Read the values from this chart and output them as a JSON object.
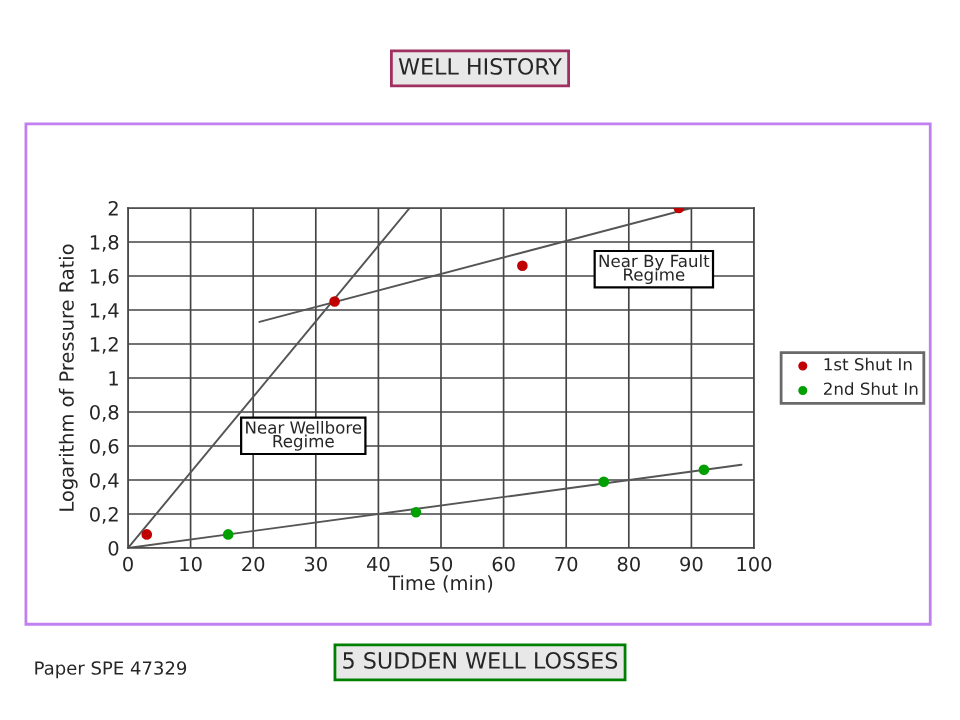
{
  "chart_data": {
    "type": "scatter",
    "title": "WELL HISTORY",
    "xlabel": "Time (min)",
    "ylabel": "Logarithm of Pressure Ratio",
    "annotations": [
      "Near Wellbore\nRegime",
      "Near By Fault\nRegime",
      "5 SUDDEN WELL LOSSES",
      "Paper SPE 47329"
    ],
    "series": [
      {
        "name": "1st Shut In",
        "color": "#c00000",
        "x": [
          3,
          33,
          63,
          88
        ],
        "values": [
          0.08,
          1.45,
          1.66,
          2.0
        ]
      },
      {
        "name": "2nd Shut In",
        "color": "#00a000",
        "x": [
          16,
          46,
          76,
          92
        ],
        "values": [
          0.08,
          0.21,
          0.39,
          0.46
        ]
      },
      {
        "type": "line",
        "marker": "none",
        "color": "#555555",
        "x": [
          0,
          45
        ],
        "values": [
          0,
          2.0
        ]
      },
      {
        "type": "line",
        "marker": "none",
        "color": "#555555",
        "x": [
          21,
          90
        ],
        "values": [
          1.33,
          2.0
        ]
      },
      {
        "type": "line",
        "marker": "none",
        "color": "#555555",
        "x": [
          0,
          98
        ],
        "values": [
          0,
          0.49
        ]
      }
    ],
    "xlim": [
      0,
      100
    ],
    "xticks": [
      0,
      10,
      20,
      30,
      40,
      50,
      60,
      70,
      80,
      90,
      100
    ],
    "ylim": [
      0,
      2
    ],
    "yticks": [
      0,
      {
        "value": 0.2,
        "label": "0,2"
      },
      {
        "value": 0.4,
        "label": "0,4"
      },
      {
        "value": 0.6,
        "label": "0,6"
      },
      {
        "value": 0.8,
        "label": "0,8"
      },
      1,
      {
        "value": 1.2,
        "label": "1,2"
      },
      {
        "value": 1.4,
        "label": "1,4"
      },
      {
        "value": 1.6,
        "label": "1,6"
      },
      {
        "value": 1.8,
        "label": "1,8"
      },
      2
    ],
    "grid": true,
    "legend": "right",
    "marker": "circle"
  }
}
